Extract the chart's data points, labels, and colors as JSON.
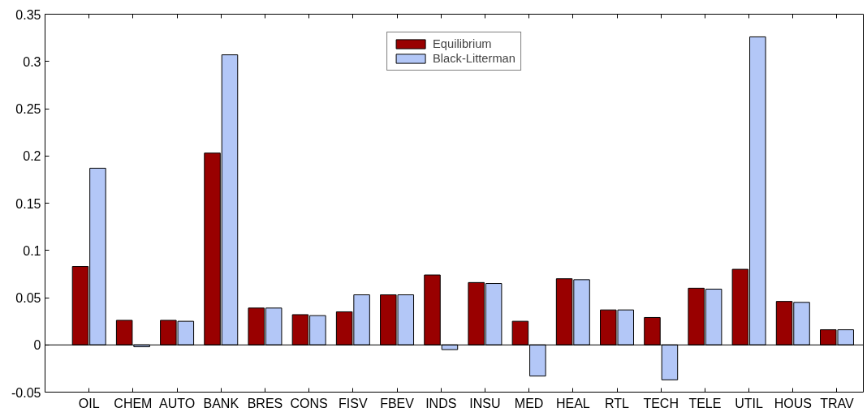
{
  "chart_data": {
    "type": "bar",
    "categories": [
      "OIL",
      "CHEM",
      "AUTO",
      "BANK",
      "BRES",
      "CONS",
      "FISV",
      "FBEV",
      "INDS",
      "INSU",
      "MED",
      "HEAL",
      "RTL",
      "TECH",
      "TELE",
      "UTIL",
      "HOUS",
      "TRAV"
    ],
    "series": [
      {
        "name": "Equilibrium",
        "color": "#990000",
        "values": [
          0.083,
          0.026,
          0.026,
          0.203,
          0.039,
          0.032,
          0.035,
          0.053,
          0.074,
          0.066,
          0.025,
          0.07,
          0.037,
          0.029,
          0.06,
          0.08,
          0.046,
          0.016
        ]
      },
      {
        "name": "Black-Litterman",
        "color": "#b3c7f7",
        "values": [
          0.187,
          -0.002,
          0.025,
          0.307,
          0.039,
          0.031,
          0.053,
          0.053,
          -0.005,
          0.065,
          -0.033,
          0.069,
          0.037,
          -0.037,
          0.059,
          0.326,
          0.045,
          0.016
        ]
      }
    ],
    "ylim": [
      -0.05,
      0.35
    ],
    "yticks": [
      -0.05,
      0,
      0.05,
      0.1,
      0.15,
      0.2,
      0.25,
      0.3,
      0.35
    ],
    "ref_lines": [
      {
        "axis": "y",
        "value": 0,
        "color": "#000000"
      }
    ],
    "grid": false,
    "legend": "top"
  }
}
